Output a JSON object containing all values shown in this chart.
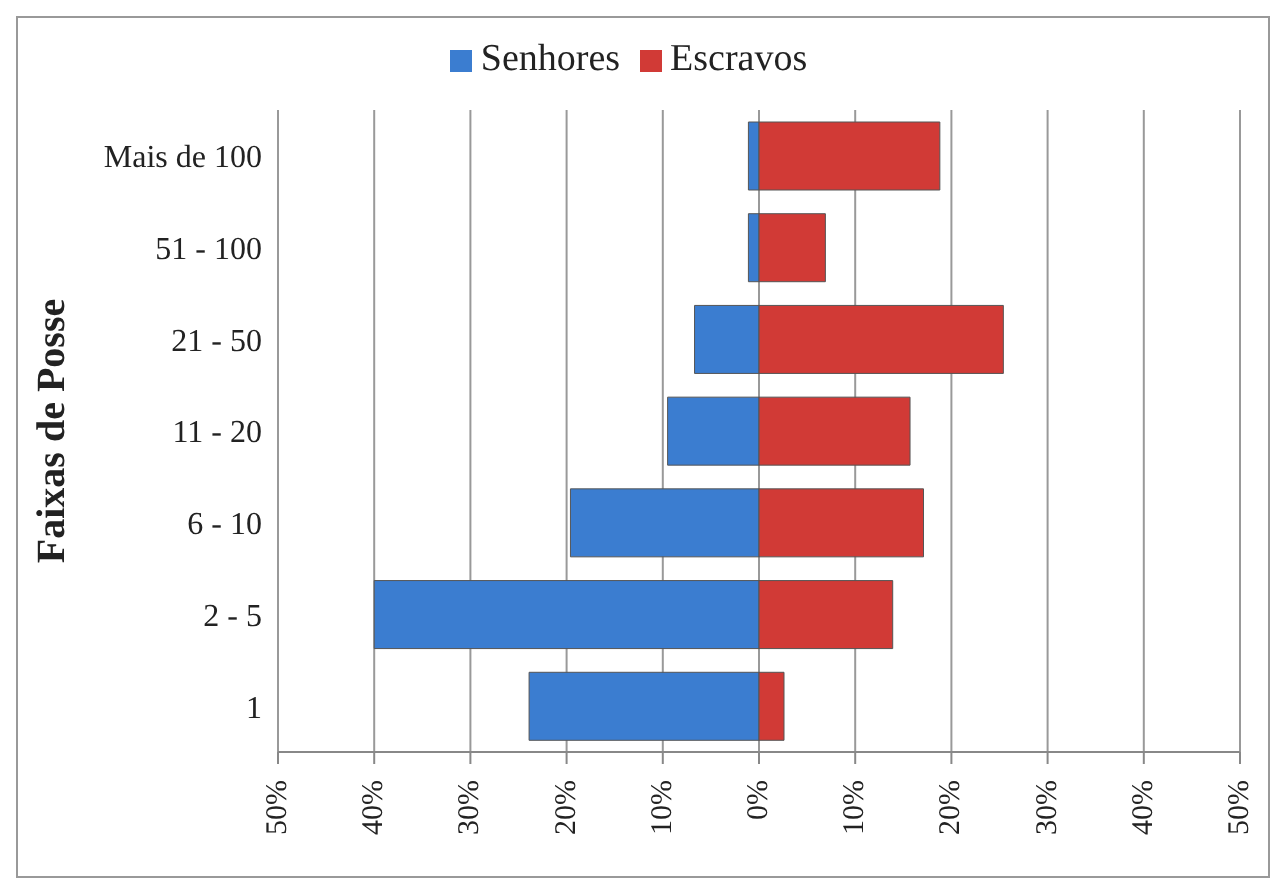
{
  "chart_data": {
    "type": "bar",
    "orientation": "horizontal",
    "stacked": true,
    "ylabel": "Faixas de Posse",
    "categories": [
      "Mais de 100",
      "51 - 100",
      "21 - 50",
      "11 - 20",
      "6 - 10",
      "2 - 5",
      "1"
    ],
    "series": [
      {
        "name": "Senhores",
        "color": "#3b7dd0",
        "values": [
          -1.1,
          -1.1,
          -6.7,
          -9.5,
          -19.6,
          -40,
          -23.9
        ]
      },
      {
        "name": "Escravos",
        "color": "#d13a36",
        "values": [
          18.8,
          6.9,
          25.4,
          15.7,
          17.1,
          13.9,
          2.6
        ]
      }
    ],
    "xlim": [
      -50,
      50
    ],
    "xticks": [
      {
        "value": -50,
        "label": "50%"
      },
      {
        "value": -40,
        "label": "40%"
      },
      {
        "value": -30,
        "label": "30%"
      },
      {
        "value": -20,
        "label": "20%"
      },
      {
        "value": -10,
        "label": "10%"
      },
      {
        "value": 0,
        "label": "0%"
      },
      {
        "value": 10,
        "label": "10%"
      },
      {
        "value": 20,
        "label": "20%"
      },
      {
        "value": 30,
        "label": "30%"
      },
      {
        "value": 40,
        "label": "40%"
      },
      {
        "value": 50,
        "label": "50%"
      }
    ],
    "grid": "x",
    "legend": "top"
  }
}
